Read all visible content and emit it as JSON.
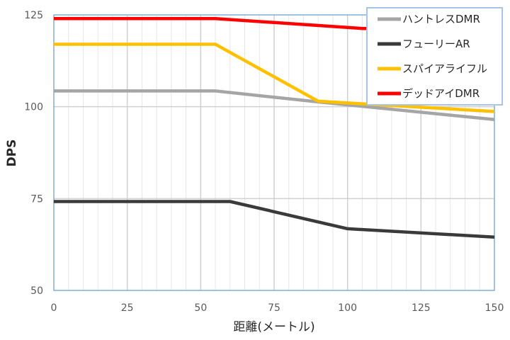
{
  "chart_data": {
    "type": "line",
    "title": "",
    "xlabel": "距離(メートル)",
    "ylabel": "DPS",
    "xlim": [
      0,
      150
    ],
    "ylim": [
      50,
      125
    ],
    "xticks": [
      0,
      25,
      50,
      75,
      100,
      125,
      150
    ],
    "yticks": [
      50,
      75,
      100,
      125
    ],
    "grid": true,
    "legend_position": "top-right",
    "series": [
      {
        "name": "ハントレスDMR",
        "color": "#A5A5A5",
        "x": [
          0,
          55,
          90,
          150
        ],
        "y": [
          104.3,
          104.3,
          101.3,
          96.5
        ]
      },
      {
        "name": "フューリーAR",
        "color": "#3A3A3A",
        "x": [
          0,
          60,
          100,
          150
        ],
        "y": [
          74.2,
          74.2,
          66.8,
          64.5
        ]
      },
      {
        "name": "スパイアライフル",
        "color": "#FFC000",
        "x": [
          0,
          55,
          90,
          150
        ],
        "y": [
          117,
          117,
          101.5,
          98.7
        ]
      },
      {
        "name": "デッドアイDMR",
        "color": "#FF0000",
        "x": [
          0,
          55,
          105,
          150
        ],
        "y": [
          124,
          124,
          121.3,
          121.3
        ]
      }
    ]
  }
}
